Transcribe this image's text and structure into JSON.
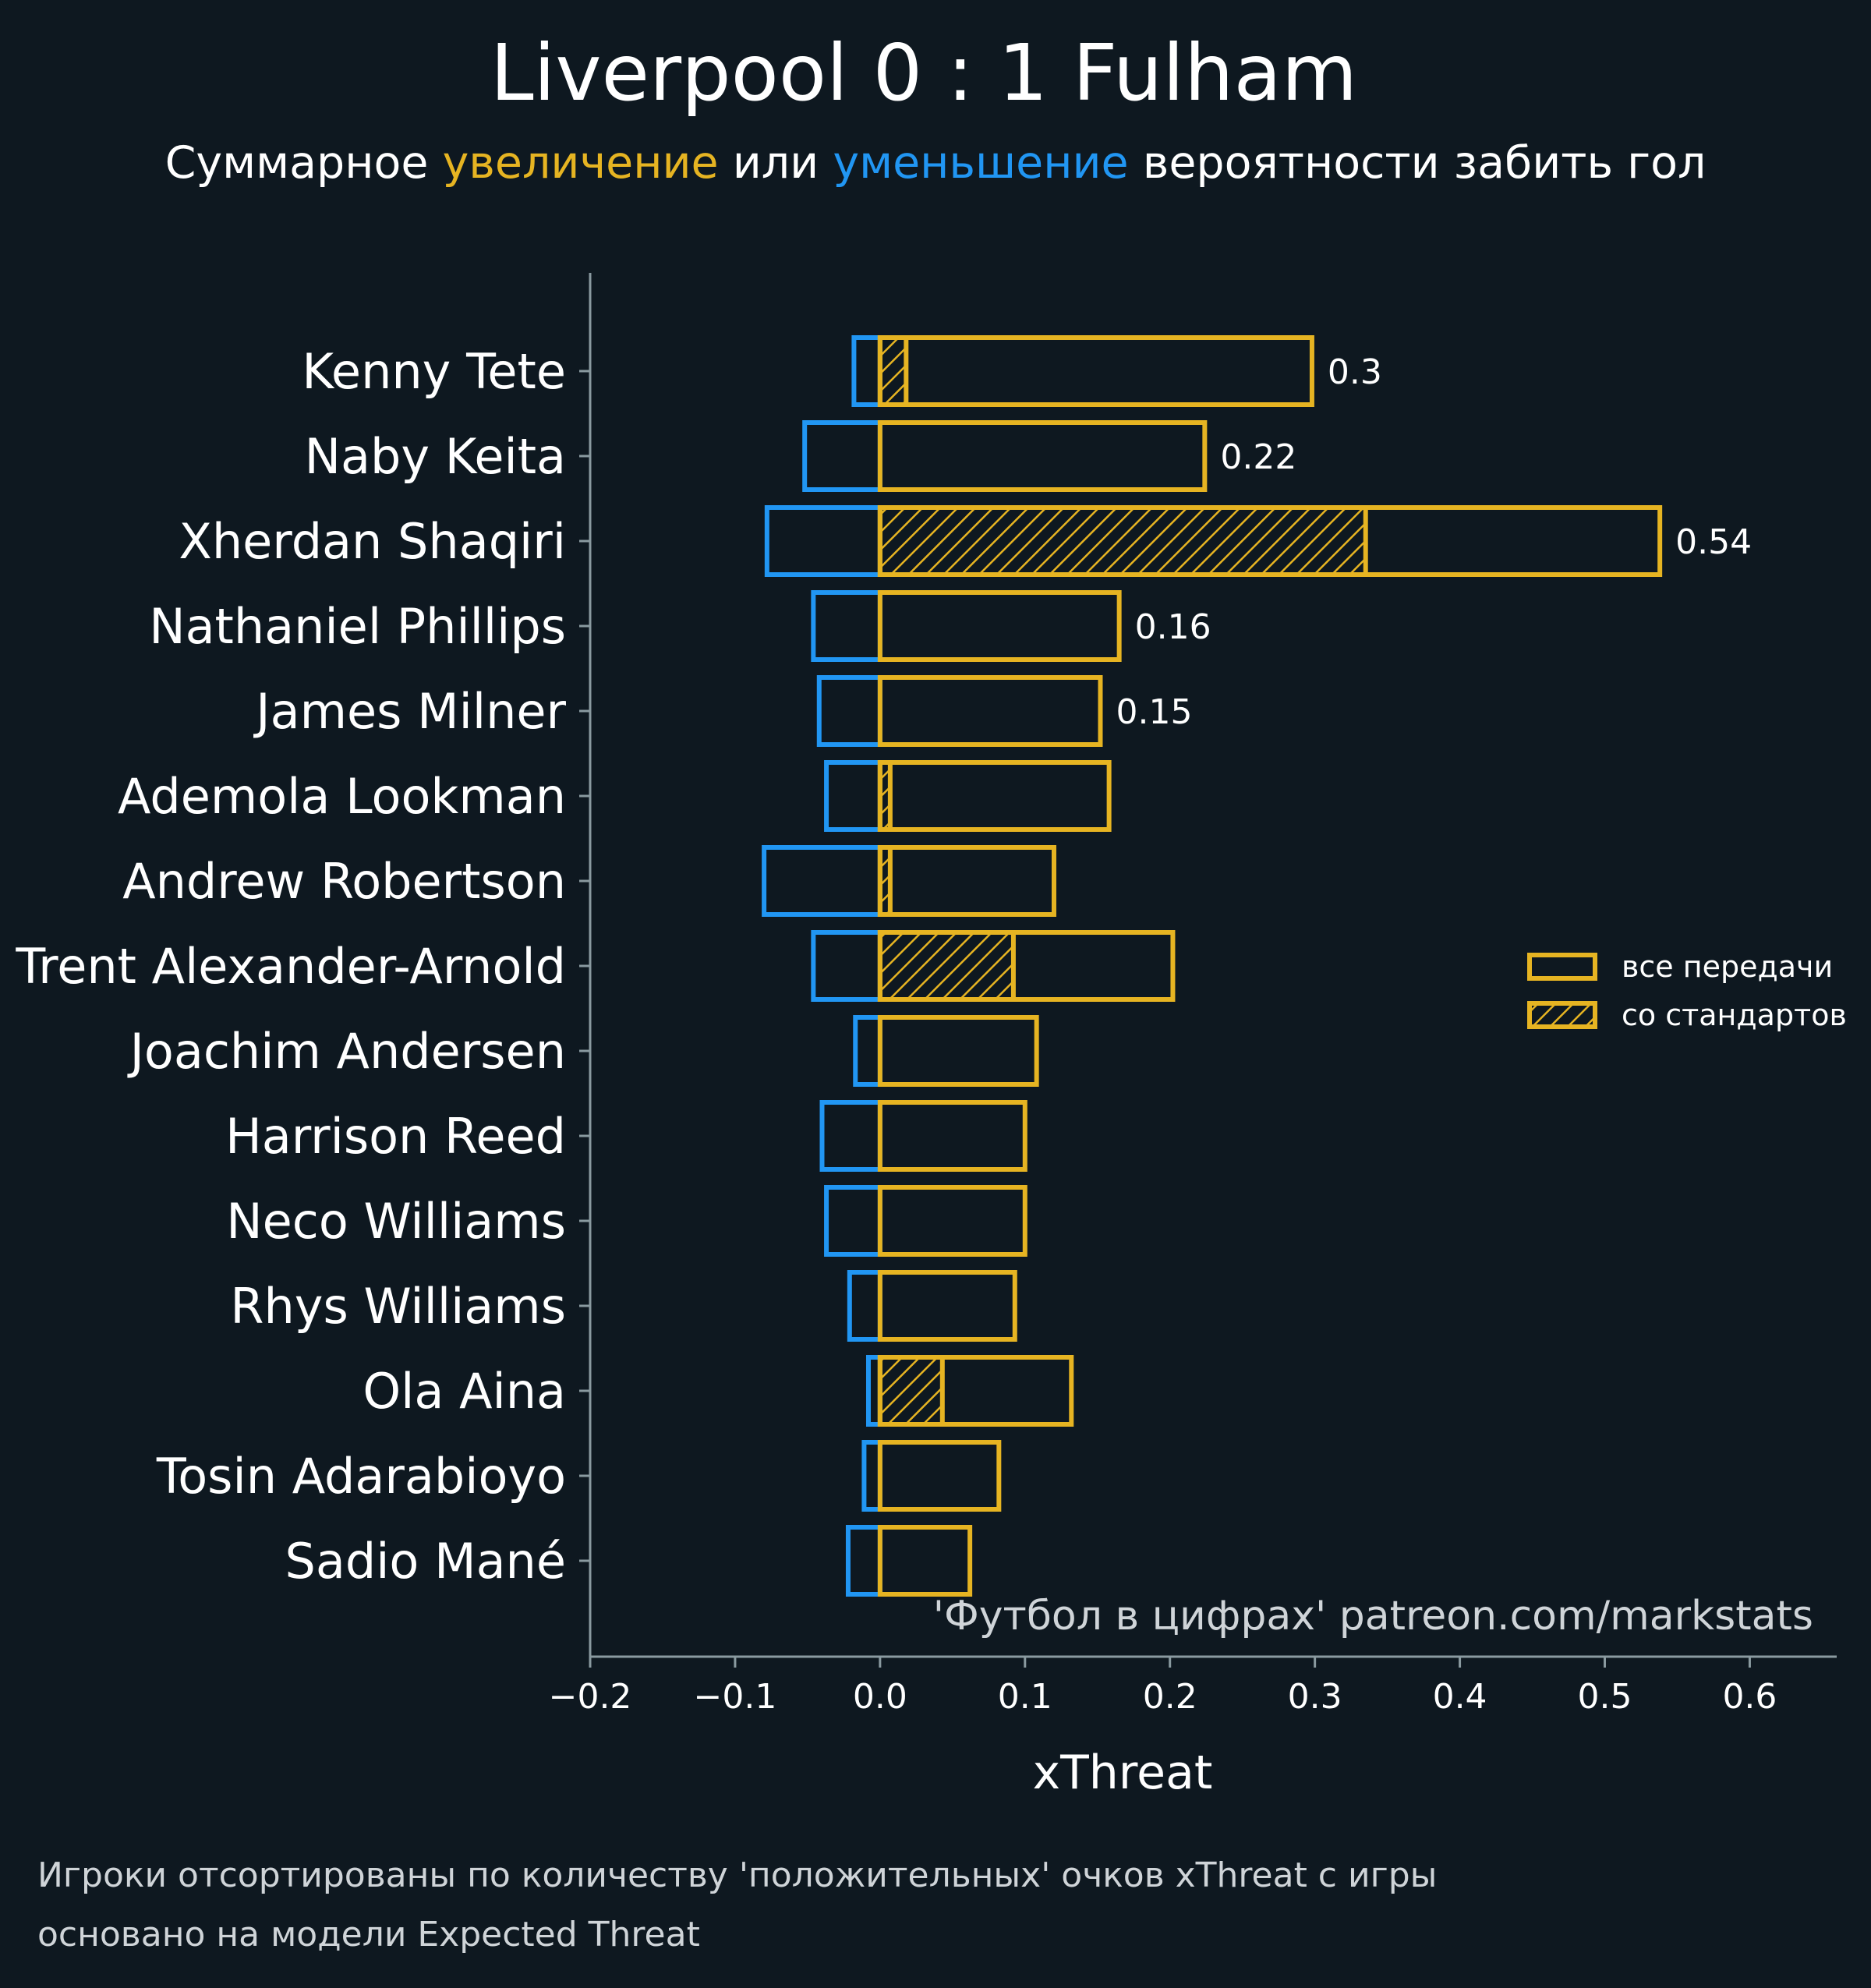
{
  "colors": {
    "background": "#0e1820",
    "positive": "#e6b422",
    "negative": "#2196f3",
    "text": "#ffffff",
    "muted": "#cfd4d8",
    "axis": "#8a9aa0"
  },
  "header": {
    "title": "Liverpool 0 : 1 Fulham",
    "subtitle_part1": "Суммарное ",
    "subtitle_part2": "увеличение",
    "subtitle_part3": " или ",
    "subtitle_part4": "уменьшение",
    "subtitle_part5": " вероятности забить гол"
  },
  "credit": "'Футбол в цифрах' patreon.com/markstats",
  "notes": {
    "line1": "Игроки отсортированы по количеству 'положительных' очков xThreat с игры",
    "line2": "основано на модели Expected Threat"
  },
  "chart_data": {
    "type": "bar",
    "orientation": "horizontal",
    "xlabel": "xThreat",
    "xlim": [
      -0.2,
      0.66
    ],
    "xticks": [
      -0.2,
      -0.1,
      0.0,
      0.1,
      0.2,
      0.3,
      0.4,
      0.5,
      0.6
    ],
    "xtick_labels": [
      "−0.2",
      "−0.1",
      "0.0",
      "0.1",
      "0.2",
      "0.3",
      "0.4",
      "0.5",
      "0.6"
    ],
    "grid": false,
    "legend": {
      "placement": "right",
      "entries": [
        "все передачи",
        "со стандартов"
      ]
    },
    "categories": [
      "Kenny Tete",
      "Naby Keita",
      "Xherdan Shaqiri",
      "Nathaniel Phillips",
      "James Milner",
      "Ademola Lookman",
      "Andrew Robertson",
      "Trent Alexander-Arnold",
      "Joachim Andersen",
      "Harrison Reed",
      "Neco Williams",
      "Rhys Williams",
      "Ola Aina",
      "Tosin Adarabioyo",
      "Sadio Mané"
    ],
    "series": [
      {
        "name": "все передачи",
        "values": [
          0.298,
          0.224,
          0.538,
          0.165,
          0.152,
          0.158,
          0.12,
          0.202,
          0.108,
          0.1,
          0.1,
          0.093,
          0.132,
          0.082,
          0.062
        ]
      },
      {
        "name": "со стандартов",
        "values": [
          0.018,
          0.0,
          0.335,
          0.0,
          0.0,
          0.007,
          0.007,
          0.092,
          0.0,
          0.0,
          0.0,
          0.0,
          0.043,
          0.0,
          0.0
        ]
      },
      {
        "values": [
          -0.018,
          -0.052,
          -0.078,
          -0.046,
          -0.042,
          -0.037,
          -0.08,
          -0.046,
          -0.017,
          -0.04,
          -0.037,
          -0.021,
          -0.008,
          -0.011,
          -0.022
        ]
      }
    ],
    "value_labels": [
      "0.3",
      "0.22",
      "0.54",
      "0.16",
      "0.15",
      "",
      "",
      "",
      "",
      "",
      "",
      "",
      "",
      "",
      ""
    ]
  }
}
